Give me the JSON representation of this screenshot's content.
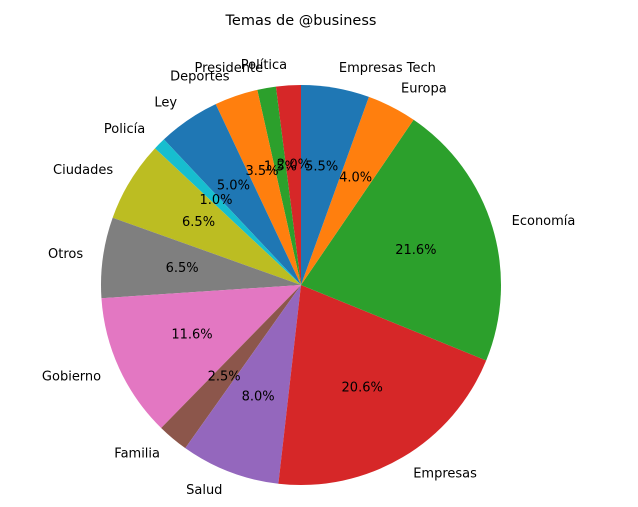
{
  "chart_data": {
    "type": "pie",
    "title": "Temas de @business",
    "counterclock": true,
    "start_angle_deg": 90,
    "slices": [
      {
        "label": "Política",
        "value": 2.0,
        "pct_label": "2.0%",
        "color": "#d62728"
      },
      {
        "label": "Presidente",
        "value": 1.5,
        "pct_label": "1.5%",
        "color": "#2ca02c"
      },
      {
        "label": "Deportes",
        "value": 3.5,
        "pct_label": "3.5%",
        "color": "#ff7f0e"
      },
      {
        "label": "Ley",
        "value": 5.0,
        "pct_label": "5.0%",
        "color": "#1f77b4"
      },
      {
        "label": "Policía",
        "value": 1.0,
        "pct_label": "1.0%",
        "color": "#17becf"
      },
      {
        "label": "Ciudades",
        "value": 6.5,
        "pct_label": "6.5%",
        "color": "#bcbd22"
      },
      {
        "label": "Otros",
        "value": 6.5,
        "pct_label": "6.5%",
        "color": "#7f7f7f"
      },
      {
        "label": "Gobierno",
        "value": 11.6,
        "pct_label": "11.6%",
        "color": "#e377c2"
      },
      {
        "label": "Familia",
        "value": 2.5,
        "pct_label": "2.5%",
        "color": "#8c564b"
      },
      {
        "label": "Salud",
        "value": 8.0,
        "pct_label": "8.0%",
        "color": "#9467bd"
      },
      {
        "label": "Empresas",
        "value": 20.6,
        "pct_label": "20.6%",
        "color": "#d62728"
      },
      {
        "label": "Economía",
        "value": 21.6,
        "pct_label": "21.6%",
        "color": "#2ca02c"
      },
      {
        "label": "Europa",
        "value": 4.0,
        "pct_label": "4.0%",
        "color": "#ff7f0e"
      },
      {
        "label": "Empresas Tech",
        "value": 5.5,
        "pct_label": "5.5%",
        "color": "#1f77b4"
      }
    ]
  }
}
